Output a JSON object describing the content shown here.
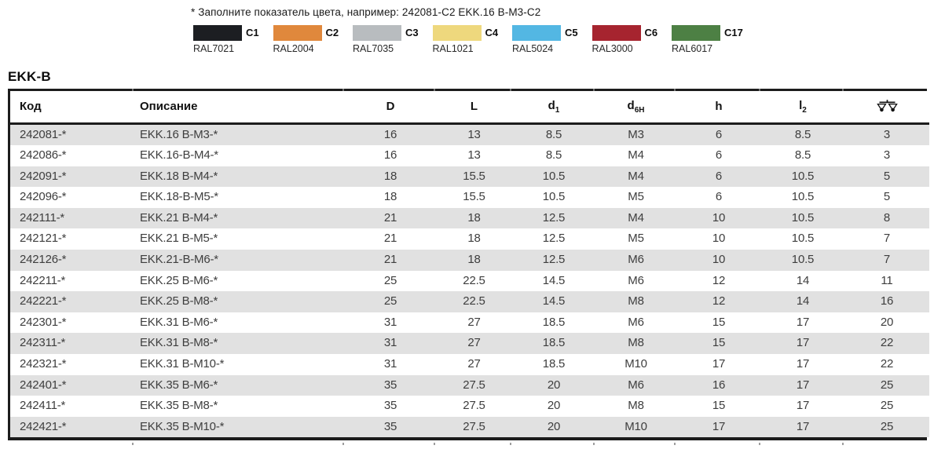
{
  "page": {
    "note": "* Заполните показатель цвета, например: 242081-C2 EKK.16 B-M3-C2",
    "series_title": "EKK-B"
  },
  "color_legend": [
    {
      "code": "C1",
      "ral": "RAL7021",
      "color": "#1c1e22"
    },
    {
      "code": "C2",
      "ral": "RAL2004",
      "color": "#e0883c"
    },
    {
      "code": "C3",
      "ral": "RAL7035",
      "color": "#b8bcbf"
    },
    {
      "code": "C4",
      "ral": "RAL1021",
      "color": "#eed87d"
    },
    {
      "code": "C5",
      "ral": "RAL5024",
      "color": "#53b7e3"
    },
    {
      "code": "C6",
      "ral": "RAL3000",
      "color": "#a6242f"
    },
    {
      "code": "C17",
      "ral": "RAL6017",
      "color": "#4d8044"
    }
  ],
  "table": {
    "columns": [
      {
        "key": "code",
        "label": "Код",
        "align": "left"
      },
      {
        "key": "description",
        "label": "Описание",
        "align": "left2"
      },
      {
        "key": "D",
        "label": "D",
        "align": "center"
      },
      {
        "key": "L",
        "label": "L",
        "align": "center"
      },
      {
        "key": "d1",
        "label": "d",
        "sub": "1",
        "align": "center"
      },
      {
        "key": "d6H",
        "label": "d",
        "sub": "6H",
        "align": "center"
      },
      {
        "key": "h",
        "label": "h",
        "align": "center"
      },
      {
        "key": "l2",
        "label": "l",
        "sub": "2",
        "align": "center"
      },
      {
        "key": "weight",
        "icon": "weight-scale-icon",
        "align": "center"
      }
    ],
    "rows": [
      [
        "242081-*",
        "EKK.16 B-M3-*",
        "16",
        "13",
        "8.5",
        "M3",
        "6",
        "8.5",
        "3"
      ],
      [
        "242086-*",
        "EKK.16-B-M4-*",
        "16",
        "13",
        "8.5",
        "M4",
        "6",
        "8.5",
        "3"
      ],
      [
        "242091-*",
        "EKK.18 B-M4-*",
        "18",
        "15.5",
        "10.5",
        "M4",
        "6",
        "10.5",
        "5"
      ],
      [
        "242096-*",
        "EKK.18-B-M5-*",
        "18",
        "15.5",
        "10.5",
        "M5",
        "6",
        "10.5",
        "5"
      ],
      [
        "242111-*",
        "EKK.21 B-M4-*",
        "21",
        "18",
        "12.5",
        "M4",
        "10",
        "10.5",
        "8"
      ],
      [
        "242121-*",
        "EKK.21 B-M5-*",
        "21",
        "18",
        "12.5",
        "M5",
        "10",
        "10.5",
        "7"
      ],
      [
        "242126-*",
        "EKK.21-B-M6-*",
        "21",
        "18",
        "12.5",
        "M6",
        "10",
        "10.5",
        "7"
      ],
      [
        "242211-*",
        "EKK.25 B-M6-*",
        "25",
        "22.5",
        "14.5",
        "M6",
        "12",
        "14",
        "11"
      ],
      [
        "242221-*",
        "EKK.25 B-M8-*",
        "25",
        "22.5",
        "14.5",
        "M8",
        "12",
        "14",
        "16"
      ],
      [
        "242301-*",
        "EKK.31 B-M6-*",
        "31",
        "27",
        "18.5",
        "M6",
        "15",
        "17",
        "20"
      ],
      [
        "242311-*",
        "EKK.31 B-M8-*",
        "31",
        "27",
        "18.5",
        "M8",
        "15",
        "17",
        "22"
      ],
      [
        "242321-*",
        "EKK.31 B-M10-*",
        "31",
        "27",
        "18.5",
        "M10",
        "17",
        "17",
        "22"
      ],
      [
        "242401-*",
        "EKK.35 B-M6-*",
        "35",
        "27.5",
        "20",
        "M6",
        "16",
        "17",
        "25"
      ],
      [
        "242411-*",
        "EKK.35 B-M8-*",
        "35",
        "27.5",
        "20",
        "M8",
        "15",
        "17",
        "25"
      ],
      [
        "242421-*",
        "EKK.35 B-M10-*",
        "35",
        "27.5",
        "20",
        "M10",
        "17",
        "17",
        "25"
      ]
    ]
  }
}
